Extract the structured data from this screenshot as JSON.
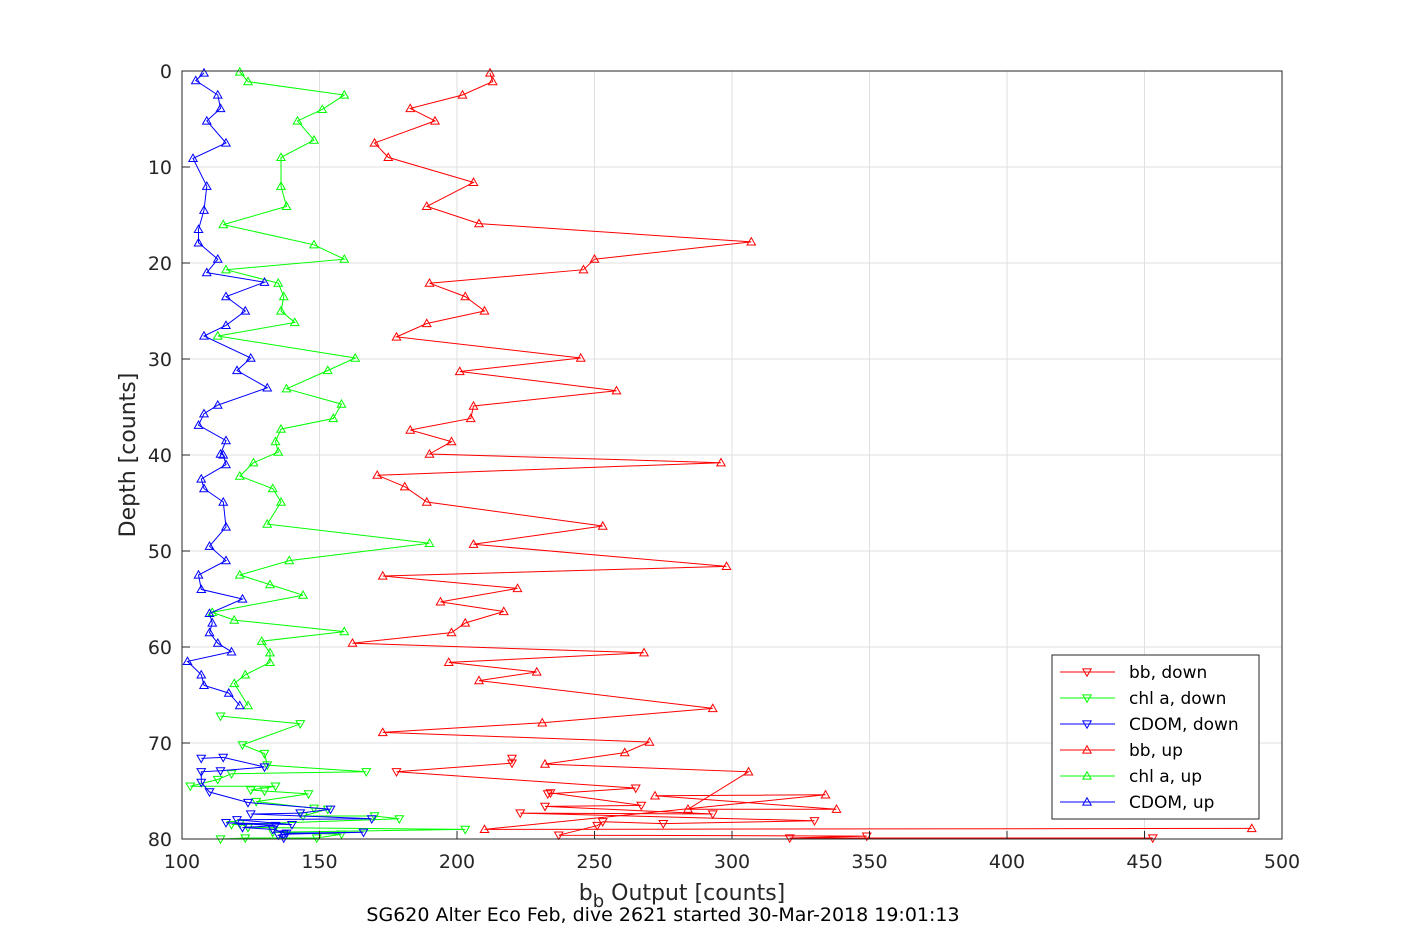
{
  "chart_data": {
    "type": "line",
    "xlabel": {
      "base": "b",
      "sub": "b",
      "rest": " Output [counts]"
    },
    "ylabel": "Depth [counts]",
    "xlim": [
      100,
      500
    ],
    "ylim": [
      0,
      80
    ],
    "y_reversed": true,
    "xticks": [
      "100",
      "150",
      "200",
      "250",
      "300",
      "350",
      "400",
      "450",
      "500"
    ],
    "yticks": [
      "0",
      "10",
      "20",
      "30",
      "40",
      "50",
      "60",
      "70",
      "80"
    ],
    "grid": true,
    "legend_position": "bottom-right",
    "caption": "SG620 Alter Eco Feb, dive 2621 started 30-Mar-2018 19:01:13",
    "series": [
      {
        "name": "bb, down",
        "color": "#ff0000",
        "marker": "triangle-down",
        "points": [
          [
            453,
            79.9
          ],
          [
            321,
            79.9
          ],
          [
            349,
            79.7
          ],
          [
            237,
            79.6
          ],
          [
            251,
            78.6
          ],
          [
            253,
            78.2
          ],
          [
            275,
            78.4
          ],
          [
            330,
            78.1
          ],
          [
            223,
            77.3
          ],
          [
            293,
            77.4
          ],
          [
            232,
            76.6
          ],
          [
            267,
            76.5
          ],
          [
            234,
            75.2
          ],
          [
            233,
            75.3
          ],
          [
            265,
            74.7
          ],
          [
            178,
            73.0
          ],
          [
            220,
            72.1
          ],
          [
            220,
            71.6
          ]
        ]
      },
      {
        "name": "chl a, down",
        "color": "#00ff00",
        "marker": "triangle-down",
        "points": [
          [
            114,
            80.0
          ],
          [
            123,
            79.9
          ],
          [
            149,
            79.9
          ],
          [
            158,
            79.5
          ],
          [
            133,
            79.3
          ],
          [
            203,
            79.0
          ],
          [
            124,
            78.8
          ],
          [
            121,
            78.4
          ],
          [
            118,
            78.5
          ],
          [
            179,
            77.9
          ],
          [
            170,
            77.6
          ],
          [
            144,
            77.6
          ],
          [
            153,
            76.9
          ],
          [
            148,
            76.8
          ],
          [
            127,
            76.1
          ],
          [
            146,
            75.3
          ],
          [
            130,
            75.0
          ],
          [
            125,
            74.9
          ],
          [
            134,
            74.5
          ],
          [
            103,
            74.5
          ],
          [
            113,
            73.8
          ],
          [
            118,
            73.2
          ],
          [
            167,
            73.0
          ],
          [
            131,
            72.3
          ],
          [
            130,
            71.1
          ],
          [
            122,
            70.2
          ],
          [
            143,
            68.0
          ],
          [
            114,
            67.2
          ]
        ]
      },
      {
        "name": "CDOM, down",
        "color": "#0000ff",
        "marker": "triangle-down",
        "points": [
          [
            137,
            79.9
          ],
          [
            135,
            79.6
          ],
          [
            137,
            79.5
          ],
          [
            166,
            79.3
          ],
          [
            138,
            79.4
          ],
          [
            133,
            79.0
          ],
          [
            122,
            78.8
          ],
          [
            134,
            78.6
          ],
          [
            116,
            78.3
          ],
          [
            140,
            78.5
          ],
          [
            120,
            78.0
          ],
          [
            169,
            77.9
          ],
          [
            125,
            77.4
          ],
          [
            143,
            77.3
          ],
          [
            154,
            76.9
          ],
          [
            124,
            76.2
          ],
          [
            110,
            75.1
          ],
          [
            107,
            74.1
          ],
          [
            107,
            73.0
          ],
          [
            114,
            72.9
          ],
          [
            130,
            72.5
          ],
          [
            115,
            71.5
          ],
          [
            107,
            71.6
          ]
        ]
      },
      {
        "name": "bb, up",
        "color": "#ff0000",
        "marker": "triangle-up",
        "points": [
          [
            489,
            78.9
          ],
          [
            210,
            79.0
          ],
          [
            334,
            75.4
          ],
          [
            272,
            75.5
          ],
          [
            338,
            76.9
          ],
          [
            284,
            76.9
          ],
          [
            306,
            73.0
          ],
          [
            232,
            72.2
          ],
          [
            261,
            71.0
          ],
          [
            270,
            69.9
          ],
          [
            173,
            68.9
          ],
          [
            231,
            67.9
          ],
          [
            293,
            66.4
          ],
          [
            208,
            63.5
          ],
          [
            229,
            62.6
          ],
          [
            197,
            61.6
          ],
          [
            268,
            60.6
          ],
          [
            162,
            59.6
          ],
          [
            198,
            58.5
          ],
          [
            203,
            57.5
          ],
          [
            217,
            56.3
          ],
          [
            194,
            55.3
          ],
          [
            222,
            53.9
          ],
          [
            173,
            52.6
          ],
          [
            298,
            51.6
          ],
          [
            206,
            49.3
          ],
          [
            253,
            47.4
          ],
          [
            189,
            44.9
          ],
          [
            181,
            43.3
          ],
          [
            171,
            42.1
          ],
          [
            296,
            40.8
          ],
          [
            190,
            39.9
          ],
          [
            198,
            38.6
          ],
          [
            183,
            37.4
          ],
          [
            205,
            36.2
          ],
          [
            206,
            34.9
          ],
          [
            258,
            33.3
          ],
          [
            201,
            31.3
          ],
          [
            245,
            29.9
          ],
          [
            178,
            27.7
          ],
          [
            189,
            26.3
          ],
          [
            210,
            25.0
          ],
          [
            203,
            23.5
          ],
          [
            190,
            22.1
          ],
          [
            246,
            20.7
          ],
          [
            250,
            19.6
          ],
          [
            307,
            17.8
          ],
          [
            208,
            15.9
          ],
          [
            189,
            14.1
          ],
          [
            206,
            11.6
          ],
          [
            175,
            9.0
          ],
          [
            170,
            7.5
          ],
          [
            192,
            5.2
          ],
          [
            183,
            3.9
          ],
          [
            202,
            2.5
          ],
          [
            213,
            1.1
          ],
          [
            212,
            0.2
          ]
        ]
      },
      {
        "name": "chl a, up",
        "color": "#00ff00",
        "marker": "triangle-up",
        "points": [
          [
            124,
            66.1
          ],
          [
            119,
            63.8
          ],
          [
            123,
            62.9
          ],
          [
            132,
            61.6
          ],
          [
            132,
            60.6
          ],
          [
            129,
            59.4
          ],
          [
            159,
            58.4
          ],
          [
            119,
            57.2
          ],
          [
            111,
            56.4
          ],
          [
            144,
            54.6
          ],
          [
            132,
            53.5
          ],
          [
            121,
            52.5
          ],
          [
            139,
            51.0
          ],
          [
            190,
            49.2
          ],
          [
            131,
            47.2
          ],
          [
            136,
            44.9
          ],
          [
            133,
            43.5
          ],
          [
            121,
            42.2
          ],
          [
            126,
            40.8
          ],
          [
            135,
            39.7
          ],
          [
            134,
            38.6
          ],
          [
            136,
            37.3
          ],
          [
            155,
            36.2
          ],
          [
            158,
            34.7
          ],
          [
            138,
            33.1
          ],
          [
            153,
            31.2
          ],
          [
            163,
            29.9
          ],
          [
            113,
            27.6
          ],
          [
            141,
            26.2
          ],
          [
            136,
            25.0
          ],
          [
            137,
            23.5
          ],
          [
            135,
            22.1
          ],
          [
            116,
            20.7
          ],
          [
            159,
            19.6
          ],
          [
            148,
            18.1
          ],
          [
            115,
            16.0
          ],
          [
            138,
            14.1
          ],
          [
            136,
            12.0
          ],
          [
            136,
            9.0
          ],
          [
            148,
            7.2
          ],
          [
            142,
            5.2
          ],
          [
            151,
            4.0
          ],
          [
            159,
            2.5
          ],
          [
            124,
            1.1
          ],
          [
            121,
            0.1
          ]
        ]
      },
      {
        "name": "CDOM, up",
        "color": "#0000ff",
        "marker": "triangle-up",
        "points": [
          [
            121,
            66.1
          ],
          [
            117,
            64.8
          ],
          [
            108,
            64.0
          ],
          [
            107,
            62.9
          ],
          [
            102,
            61.5
          ],
          [
            118,
            60.5
          ],
          [
            113,
            59.6
          ],
          [
            110,
            58.5
          ],
          [
            111,
            57.5
          ],
          [
            110,
            56.5
          ],
          [
            122,
            55.0
          ],
          [
            107,
            54.0
          ],
          [
            106,
            52.5
          ],
          [
            116,
            51.0
          ],
          [
            110,
            49.5
          ],
          [
            116,
            47.5
          ],
          [
            115,
            44.9
          ],
          [
            108,
            43.5
          ],
          [
            107,
            42.5
          ],
          [
            116,
            41.0
          ],
          [
            115,
            40.0
          ],
          [
            114,
            39.9
          ],
          [
            116,
            38.5
          ],
          [
            106,
            36.9
          ],
          [
            108,
            35.7
          ],
          [
            113,
            34.8
          ],
          [
            131,
            33.0
          ],
          [
            120,
            31.2
          ],
          [
            125,
            29.9
          ],
          [
            108,
            27.6
          ],
          [
            116,
            26.5
          ],
          [
            123,
            25.0
          ],
          [
            116,
            23.5
          ],
          [
            130,
            22.0
          ],
          [
            109,
            21.0
          ],
          [
            113,
            19.6
          ],
          [
            106,
            17.9
          ],
          [
            106,
            16.5
          ],
          [
            108,
            14.5
          ],
          [
            109,
            12.0
          ],
          [
            104,
            9.1
          ],
          [
            116,
            7.5
          ],
          [
            109,
            5.2
          ],
          [
            114,
            3.9
          ],
          [
            113,
            2.5
          ],
          [
            105,
            1.0
          ],
          [
            108,
            0.2
          ]
        ]
      }
    ]
  }
}
